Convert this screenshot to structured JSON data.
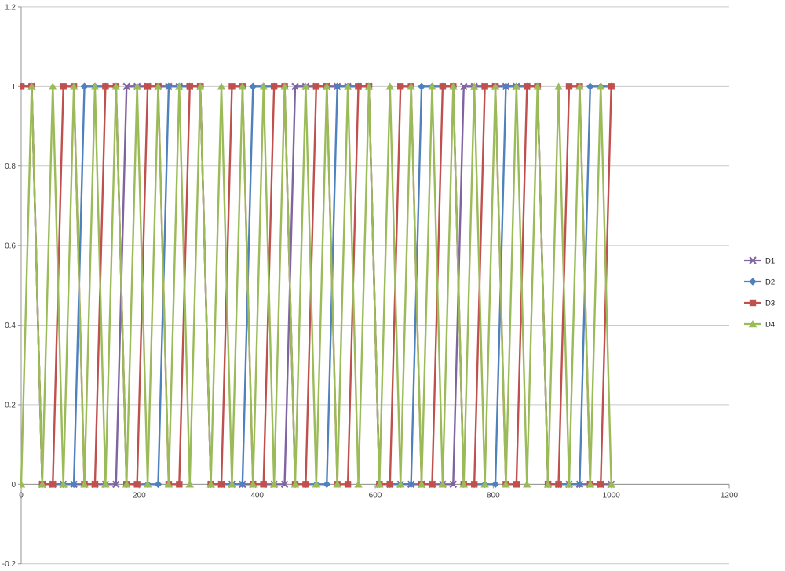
{
  "chart_data": {
    "type": "line",
    "subtype": "digital-square-waves",
    "title": "",
    "xlabel": "",
    "ylabel": "",
    "xlim": [
      0,
      1200
    ],
    "ylim": [
      -0.2,
      1.2
    ],
    "x_ticks": [
      0,
      200,
      400,
      600,
      800,
      1000,
      1200
    ],
    "x_tick_labels": [
      "0",
      "200",
      "400",
      "600",
      "800",
      "1000",
      "1200"
    ],
    "y_ticks": [
      1.2,
      1,
      0.8,
      0.6,
      0.4,
      0.2,
      0,
      -0.2
    ],
    "y_tick_labels": [
      "1.2",
      "1",
      "0.8",
      "0.6",
      "0.4",
      "0.2",
      "0",
      "-0.2"
    ],
    "grid": "horizontal-only",
    "legend_position": "right",
    "background": "#ffffff",
    "gridline_color": "#c9c9c9",
    "axis_color": "#959595",
    "text_color": "#404040",
    "x_start": 0,
    "x_step": 17.8571428571,
    "point_count": 57,
    "series": [
      {
        "name": "D1",
        "color": "#8064A2",
        "marker": "x",
        "values": [
          1,
          1,
          0,
          0,
          0,
          0,
          0,
          0,
          0,
          0,
          1,
          1,
          1,
          1,
          1,
          1,
          1,
          1,
          0,
          0,
          0,
          0,
          0,
          0,
          0,
          0,
          1,
          1,
          1,
          1,
          1,
          1,
          1,
          1,
          0,
          0,
          0,
          0,
          0,
          0,
          0,
          0,
          1,
          1,
          1,
          1,
          1,
          1,
          1,
          1,
          0,
          0,
          0,
          0,
          0,
          0,
          0
        ]
      },
      {
        "name": "D2",
        "color": "#4F81BD",
        "marker": "diamond",
        "values": [
          1,
          1,
          0,
          0,
          0,
          0,
          1,
          1,
          1,
          1,
          0,
          0,
          0,
          0,
          1,
          1,
          1,
          1,
          0,
          0,
          0,
          0,
          1,
          1,
          1,
          1,
          0,
          0,
          0,
          0,
          1,
          1,
          1,
          1,
          0,
          0,
          0,
          0,
          1,
          1,
          1,
          1,
          0,
          0,
          0,
          0,
          1,
          1,
          1,
          1,
          0,
          0,
          0,
          0,
          1,
          1,
          1
        ]
      },
      {
        "name": "D3",
        "color": "#C0504D",
        "marker": "square",
        "values": [
          1,
          1,
          0,
          0,
          1,
          1,
          0,
          0,
          1,
          1,
          0,
          0,
          1,
          1,
          0,
          0,
          1,
          1,
          0,
          0,
          1,
          1,
          0,
          0,
          1,
          1,
          0,
          0,
          1,
          1,
          0,
          0,
          1,
          1,
          0,
          0,
          1,
          1,
          0,
          0,
          1,
          1,
          0,
          0,
          1,
          1,
          0,
          0,
          1,
          1,
          0,
          0,
          1,
          1,
          0,
          0,
          1
        ]
      },
      {
        "name": "D4",
        "color": "#9BBB59",
        "marker": "triangle",
        "values": [
          0,
          1,
          0,
          1,
          0,
          1,
          0,
          1,
          0,
          1,
          0,
          1,
          0,
          1,
          0,
          1,
          0,
          1,
          0,
          1,
          0,
          1,
          0,
          1,
          0,
          1,
          0,
          1,
          0,
          1,
          0,
          1,
          0,
          1,
          0,
          1,
          0,
          1,
          0,
          1,
          0,
          1,
          0,
          1,
          0,
          1,
          0,
          1,
          0,
          1,
          0,
          1,
          0,
          1,
          0,
          1,
          0
        ]
      }
    ],
    "legend_labels": [
      "D1",
      "D2",
      "D3",
      "D4"
    ]
  }
}
